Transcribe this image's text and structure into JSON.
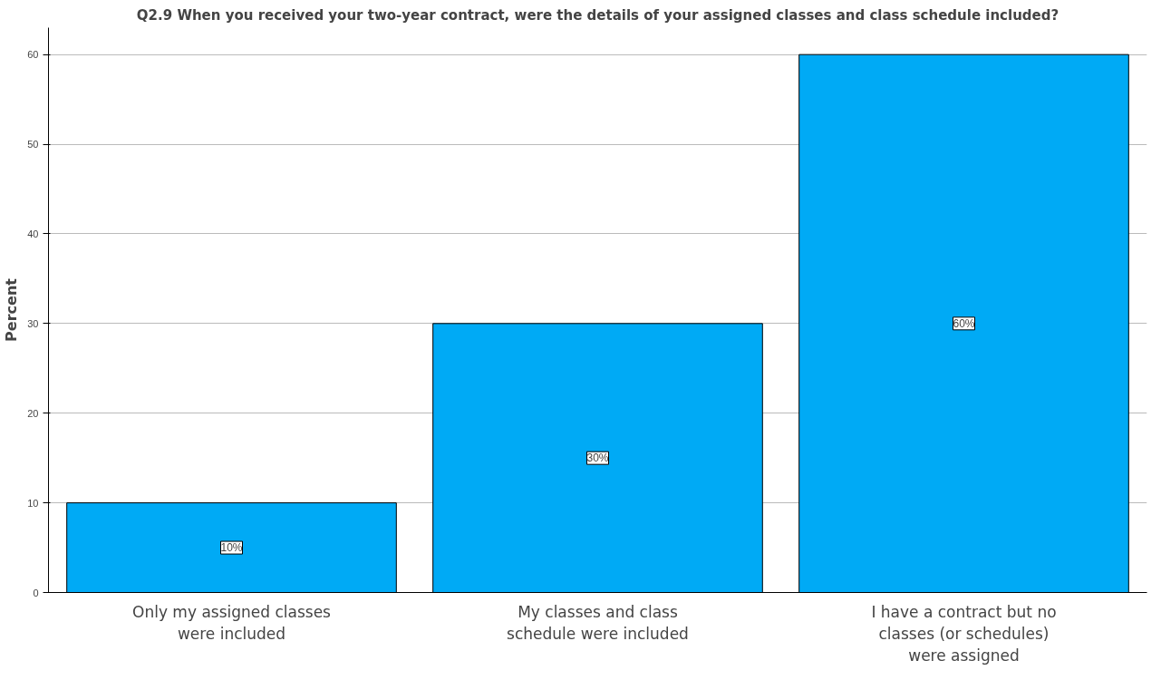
{
  "chart_data": {
    "type": "bar",
    "title": "Q2.9 When you received your two-year contract, were the details of your assigned classes and class schedule included?",
    "ylabel": "Percent",
    "categories": [
      "Only my assigned classes were included",
      "My classes and class schedule were included",
      "I have a contract but no classes (or schedules) were assigned"
    ],
    "values": [
      10,
      30,
      60
    ],
    "value_labels": [
      "10%",
      "30%",
      "60%"
    ],
    "color": "#00aaf5",
    "ylim": [
      0,
      63
    ],
    "yticks": [
      0,
      10,
      20,
      30,
      40,
      50,
      60
    ],
    "grid": "y"
  }
}
